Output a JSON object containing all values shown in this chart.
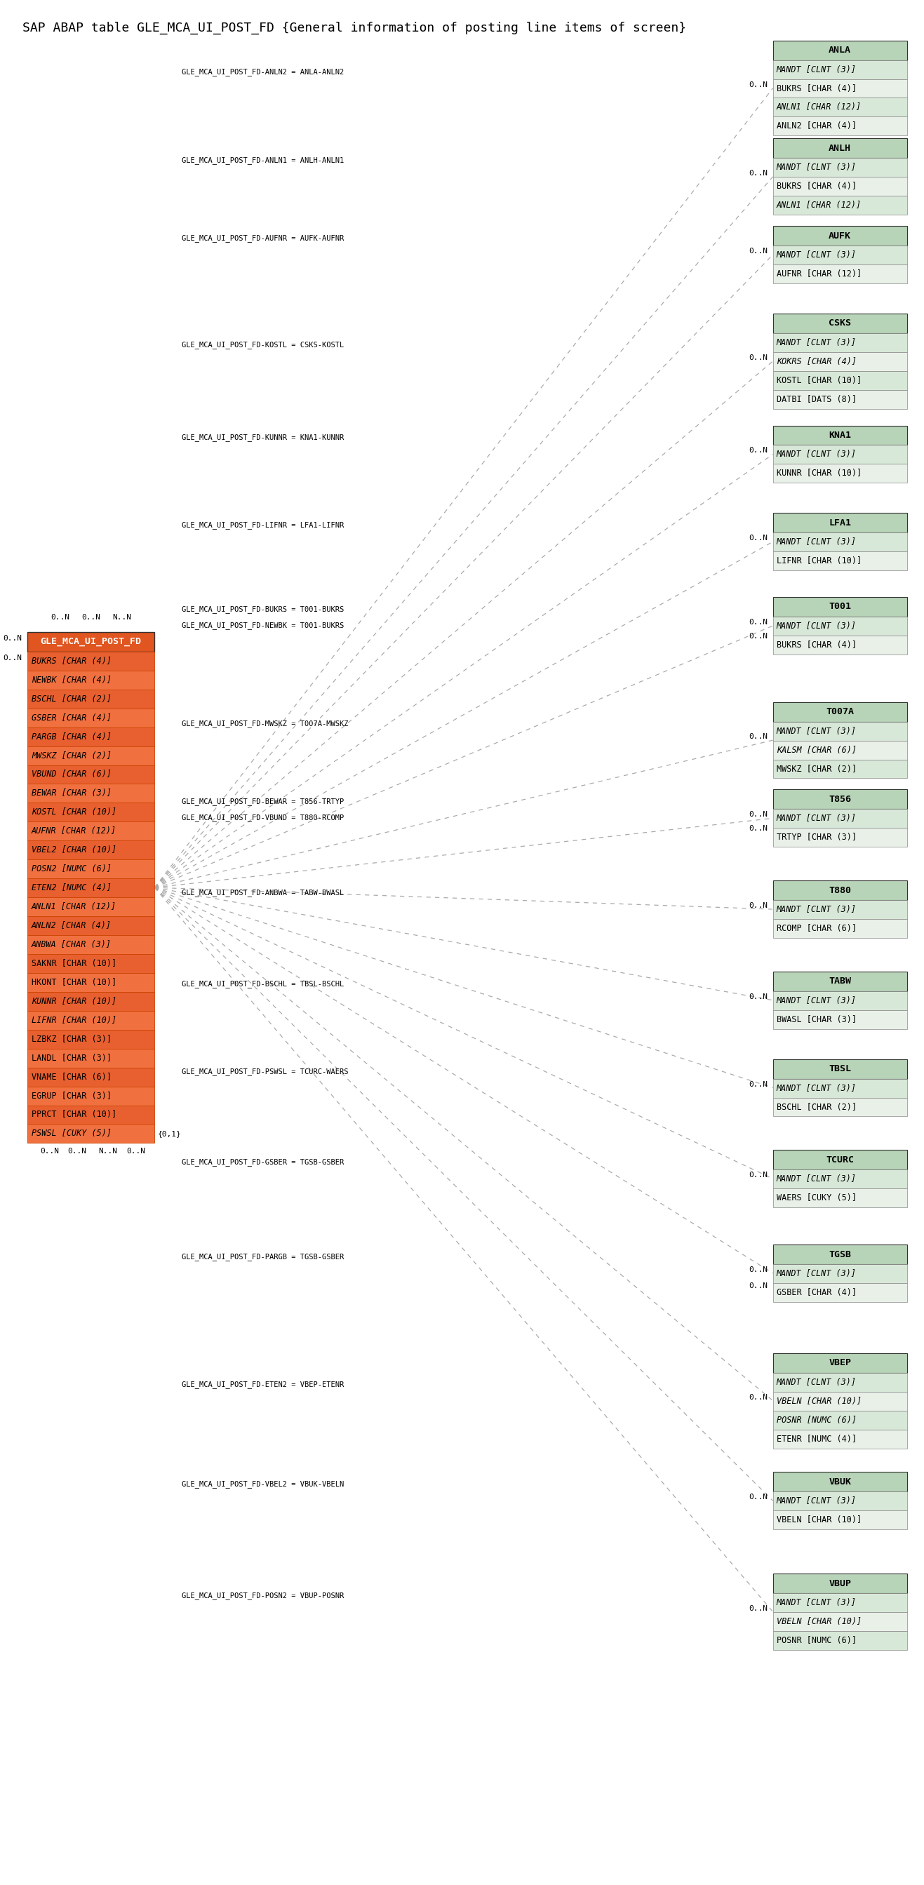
{
  "title": "SAP ABAP table GLE_MCA_UI_POST_FD {General information of posting line items of screen}",
  "title_fontsize": 14,
  "background_color": "#ffffff",
  "main_table": {
    "name": "GLE_MCA_UI_POST_FD",
    "header_color": "#e05020",
    "fields": [
      "BUKRS [CHAR (4)]",
      "NEWBK [CHAR (4)]",
      "BSCHL [CHAR (2)]",
      "GSBER [CHAR (4)]",
      "PARGB [CHAR (4)]",
      "MWSKZ [CHAR (2)]",
      "VBUND [CHAR (6)]",
      "BEWAR [CHAR (3)]",
      "KOSTL [CHAR (10)]",
      "AUFNR [CHAR (12)]",
      "VBEL2 [CHAR (10)]",
      "POSN2 [NUMC (6)]",
      "ETEN2 [NUMC (4)]",
      "ANLN1 [CHAR (12)]",
      "ANLN2 [CHAR (4)]",
      "ANBWA [CHAR (3)]",
      "SAKNR [CHAR (10)]",
      "HKONT [CHAR (10)]",
      "KUNNR [CHAR (10)]",
      "LIFNR [CHAR (10)]",
      "LZBKZ [CHAR (3)]",
      "LANDL [CHAR (3)]",
      "VNAME [CHAR (6)]",
      "EGRUP [CHAR (3)]",
      "PPRCT [CHAR (10)]",
      "PSWSL [CUKY (5)]"
    ],
    "italic_fields": [
      "BUKRS",
      "NEWBK",
      "BSCHL",
      "GSBER",
      "PARGB",
      "MWSKZ",
      "VBUND",
      "BEWAR",
      "KOSTL",
      "AUFNR",
      "VBEL2",
      "POSN2",
      "ETEN2",
      "ANLN1",
      "ANLN2",
      "ANBWA",
      "KUNNR",
      "LIFNR",
      "PSWSL"
    ]
  },
  "related_tables": [
    {
      "name": "ANLA",
      "fields": [
        "MANDT [CLNT (3)]",
        "BUKRS [CHAR (4)]",
        "ANLN1 [CHAR (12)]",
        "ANLN2 [CHAR (4)]"
      ],
      "italic_fields": [
        "MANDT",
        "ANLN1"
      ],
      "relation_label": "GLE_MCA_UI_POST_FD-ANLN2 = ANLA-ANLN2",
      "cardinality": "0..N"
    },
    {
      "name": "ANLH",
      "fields": [
        "MANDT [CLNT (3)]",
        "BUKRS [CHAR (4)]",
        "ANLN1 [CHAR (12)]"
      ],
      "italic_fields": [
        "MANDT",
        "ANLN1"
      ],
      "relation_label": "GLE_MCA_UI_POST_FD-ANLN1 = ANLH-ANLN1",
      "cardinality": "0..N"
    },
    {
      "name": "AUFK",
      "fields": [
        "MANDT [CLNT (3)]",
        "AUFNR [CHAR (12)]"
      ],
      "italic_fields": [
        "MANDT"
      ],
      "relation_label": "GLE_MCA_UI_POST_FD-AUFNR = AUFK-AUFNR",
      "cardinality": "0..N"
    },
    {
      "name": "CSKS",
      "fields": [
        "MANDT [CLNT (3)]",
        "KOKRS [CHAR (4)]",
        "KOSTL [CHAR (10)]",
        "DATBI [DATS (8)]"
      ],
      "italic_fields": [
        "MANDT",
        "KOKRS"
      ],
      "relation_label": "GLE_MCA_UI_POST_FD-KOSTL = CSKS-KOSTL",
      "cardinality": "0..N"
    },
    {
      "name": "KNA1",
      "fields": [
        "MANDT [CLNT (3)]",
        "KUNNR [CHAR (10)]"
      ],
      "italic_fields": [
        "MANDT"
      ],
      "relation_label": "GLE_MCA_UI_POST_FD-KUNNR = KNA1-KUNNR",
      "cardinality": "0..N"
    },
    {
      "name": "LFA1",
      "fields": [
        "MANDT [CLNT (3)]",
        "LIFNR [CHAR (10)]"
      ],
      "italic_fields": [
        "MANDT"
      ],
      "relation_label": "GLE_MCA_UI_POST_FD-LIFNR = LFA1-LIFNR",
      "cardinality": "0..N"
    },
    {
      "name": "T001",
      "fields": [
        "MANDT [CLNT (3)]",
        "BUKRS [CHAR (4)]"
      ],
      "italic_fields": [
        "MANDT"
      ],
      "relation_label": "GLE_MCA_UI_POST_FD-BUKRS = T001-BUKRS",
      "relation_label2": "GLE_MCA_UI_POST_FD-NEWBK = T001-BUKRS",
      "cardinality": "0..N",
      "cardinality2": "0..N"
    },
    {
      "name": "T007A",
      "fields": [
        "MANDT [CLNT (3)]",
        "KALSM [CHAR (6)]",
        "MWSKZ [CHAR (2)]"
      ],
      "italic_fields": [
        "MANDT",
        "KALSM"
      ],
      "relation_label": "GLE_MCA_UI_POST_FD-MWSKZ = T007A-MWSKZ",
      "cardinality": "0..N"
    },
    {
      "name": "T856",
      "fields": [
        "MANDT [CLNT (3)]",
        "TRTYP [CHAR (3)]"
      ],
      "italic_fields": [
        "MANDT"
      ],
      "relation_label": "GLE_MCA_UI_POST_FD-BEWAR = T856-TRTYP",
      "relation_label2": "GLE_MCA_UI_POST_FD-VBUND = T880-RCOMP",
      "cardinality": "0..N",
      "cardinality2": "0..N"
    },
    {
      "name": "T880",
      "fields": [
        "MANDT [CLNT (3)]",
        "RCOMP [CHAR (6)]"
      ],
      "italic_fields": [
        "MANDT"
      ],
      "relation_label": "GLE_MCA_UI_POST_FD-ANBWA = TABW-BWASL",
      "cardinality": "0..N"
    },
    {
      "name": "TABW",
      "fields": [
        "MANDT [CLNT (3)]",
        "BWASL [CHAR (3)]"
      ],
      "italic_fields": [
        "MANDT"
      ],
      "relation_label": "GLE_MCA_UI_POST_FD-BSCHL = TBSL-BSCHL",
      "cardinality": "0..N"
    },
    {
      "name": "TBSL",
      "fields": [
        "MANDT [CLNT (3)]",
        "BSCHL [CHAR (2)]"
      ],
      "italic_fields": [
        "MANDT"
      ],
      "relation_label": "GLE_MCA_UI_POST_FD-PSWSL = TCURC-WAERS",
      "cardinality": "0..N"
    },
    {
      "name": "TCURC",
      "fields": [
        "MANDT [CLNT (3)]",
        "WAERS [CUKY (5)]"
      ],
      "italic_fields": [
        "MANDT"
      ],
      "relation_label": "GLE_MCA_UI_POST_FD-GSBER = TGSB-GSBER",
      "cardinality": "0..N"
    },
    {
      "name": "TGSB",
      "fields": [
        "MANDT [CLNT (3)]",
        "GSBER [CHAR (4)]"
      ],
      "italic_fields": [
        "MANDT"
      ],
      "relation_label": "GLE_MCA_UI_POST_FD-PARGB = TGSB-GSBER",
      "cardinality": "0..N",
      "cardinality2": "0..N"
    },
    {
      "name": "VBEP",
      "fields": [
        "MANDT [CLNT (3)]",
        "VBELN [CHAR (10)]",
        "POSNR [NUMC (6)]",
        "ETENR [NUMC (4)]"
      ],
      "italic_fields": [
        "MANDT",
        "VBELN",
        "POSNR"
      ],
      "relation_label": "GLE_MCA_UI_POST_FD-ETEN2 = VBEP-ETENR",
      "cardinality": "0..N"
    },
    {
      "name": "VBUK",
      "fields": [
        "MANDT [CLNT (3)]",
        "VBELN [CHAR (10)]"
      ],
      "italic_fields": [
        "MANDT"
      ],
      "relation_label": "GLE_MCA_UI_POST_FD-VBEL2 = VBUK-VBELN",
      "cardinality": "0..N"
    },
    {
      "name": "VBUP",
      "fields": [
        "MANDT [CLNT (3)]",
        "VBELN [CHAR (10)]",
        "POSNR [NUMC (6)]"
      ],
      "italic_fields": [
        "MANDT",
        "VBELN"
      ],
      "relation_label": "GLE_MCA_UI_POST_FD-POSN2 = VBUP-POSNR",
      "cardinality": "0..N"
    }
  ],
  "table_header_color": "#b8d4b8",
  "table_field_color_even": "#d8e8d8",
  "table_field_color_odd": "#e8f0e8",
  "main_header_color": "#e05520",
  "main_field_color_even": "#e86030",
  "main_field_color_odd": "#f07040"
}
